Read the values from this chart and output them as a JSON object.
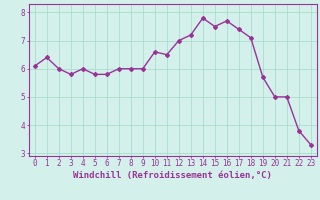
{
  "x": [
    0,
    1,
    2,
    3,
    4,
    5,
    6,
    7,
    8,
    9,
    10,
    11,
    12,
    13,
    14,
    15,
    16,
    17,
    18,
    19,
    20,
    21,
    22,
    23
  ],
  "y": [
    6.1,
    6.4,
    6.0,
    5.8,
    6.0,
    5.8,
    5.8,
    6.0,
    6.0,
    6.0,
    6.6,
    6.5,
    7.0,
    7.2,
    7.8,
    7.5,
    7.7,
    7.4,
    7.1,
    5.7,
    5.0,
    5.0,
    3.8,
    3.3
  ],
  "line_color": "#993399",
  "marker": "D",
  "marker_size": 2,
  "linewidth": 1.0,
  "xlabel": "Windchill (Refroidissement éolien,°C)",
  "xlabel_fontsize": 6.5,
  "ylim": [
    2.9,
    8.3
  ],
  "xlim": [
    -0.5,
    23.5
  ],
  "yticks": [
    3,
    4,
    5,
    6,
    7,
    8
  ],
  "xticks": [
    0,
    1,
    2,
    3,
    4,
    5,
    6,
    7,
    8,
    9,
    10,
    11,
    12,
    13,
    14,
    15,
    16,
    17,
    18,
    19,
    20,
    21,
    22,
    23
  ],
  "tick_fontsize": 5.5,
  "grid_color": "#aaddcc",
  "bg_color": "#d4f0ea",
  "axes_color": "#993399",
  "label_color": "#993399"
}
